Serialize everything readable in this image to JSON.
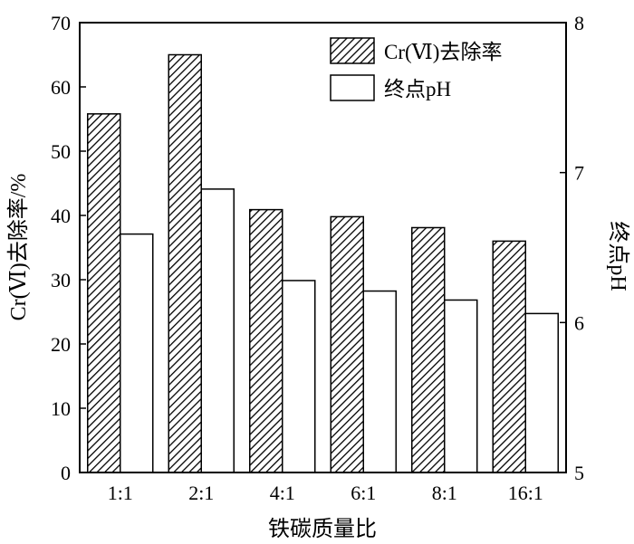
{
  "chart_data": {
    "type": "bar",
    "categories": [
      "1:1",
      "2:1",
      "4:1",
      "6:1",
      "8:1",
      "16:1"
    ],
    "series": [
      {
        "name": "Cr(Ⅵ)去除率",
        "axis": "left",
        "pattern": "hatched",
        "values": [
          55.8,
          65.0,
          40.9,
          39.8,
          38.1,
          36.0
        ]
      },
      {
        "name": "终点pH",
        "axis": "right",
        "pattern": "white",
        "values": [
          6.59,
          6.89,
          6.28,
          6.21,
          6.15,
          6.06
        ]
      }
    ],
    "xlabel": "铁碳质量比",
    "ylabel": "Cr(Ⅵ)去除率/%",
    "y2label": "终点pH",
    "ylim": [
      0,
      70
    ],
    "yticks": [
      "0",
      "10",
      "20",
      "30",
      "40",
      "50",
      "60",
      "70"
    ],
    "y2lim": [
      5,
      8
    ],
    "y2ticks": [
      "5",
      "6",
      "7",
      "8"
    ],
    "grid": false,
    "legend_position": "top-right",
    "colors": {
      "stroke": "#000000",
      "fill_white": "#ffffff",
      "hatch": "#000000"
    }
  }
}
